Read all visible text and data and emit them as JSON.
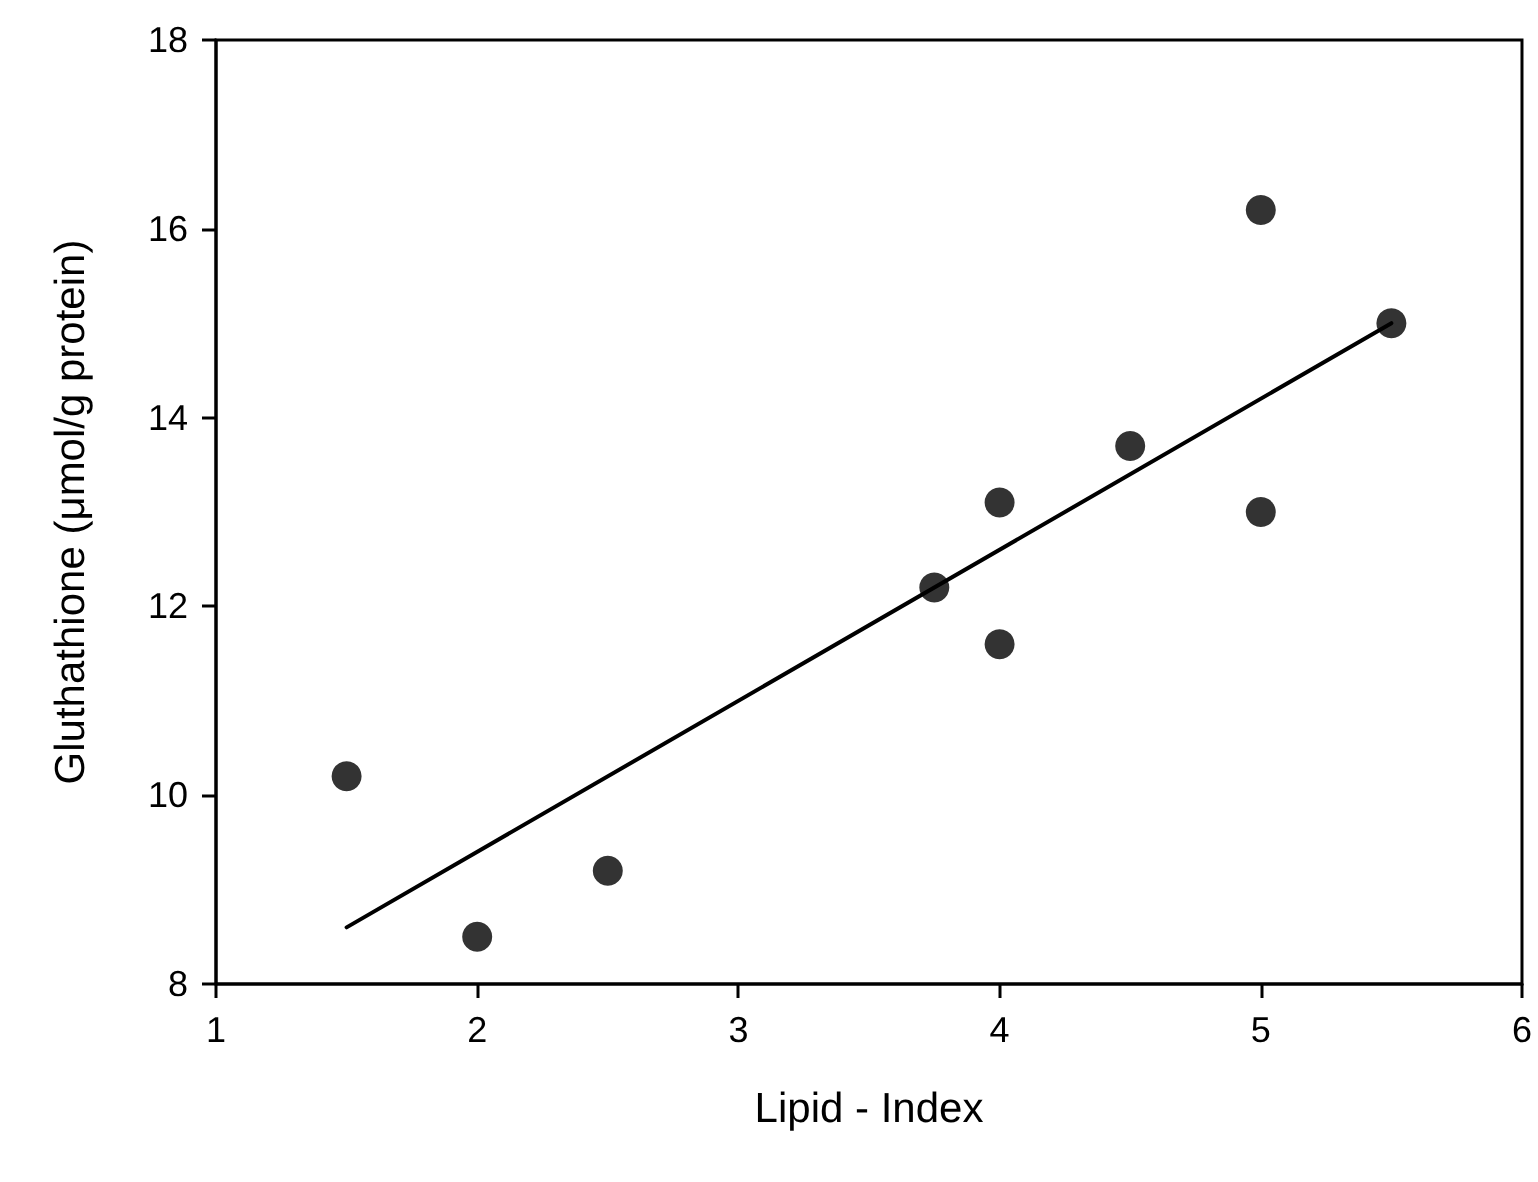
{
  "chart_data": {
    "type": "scatter",
    "xlabel": "Lipid - Index",
    "ylabel": "Gluthathione (μmol/g protein)",
    "series": [
      {
        "color": "#000000",
        "marker": "circle",
        "x": [
          1.5,
          2,
          2.5,
          3.75,
          4,
          4,
          4.5,
          5,
          5,
          5.5
        ],
        "values": [
          10.2,
          8.5,
          9.2,
          12.2,
          13.1,
          11.6,
          13.7,
          16.2,
          13.0,
          15.0
        ]
      },
      {
        "type": "line",
        "color": "#000000",
        "marker": "none",
        "x": [
          1.5,
          5.5
        ],
        "values": [
          8.6,
          15.0
        ]
      }
    ],
    "xlim": [
      1,
      6
    ],
    "xticks": [
      1,
      2,
      3,
      4,
      5,
      6
    ],
    "ylim": [
      8,
      18
    ],
    "yticks": [
      8,
      10,
      12,
      14,
      16,
      18
    ],
    "grid": false,
    "line_style": "solid"
  }
}
